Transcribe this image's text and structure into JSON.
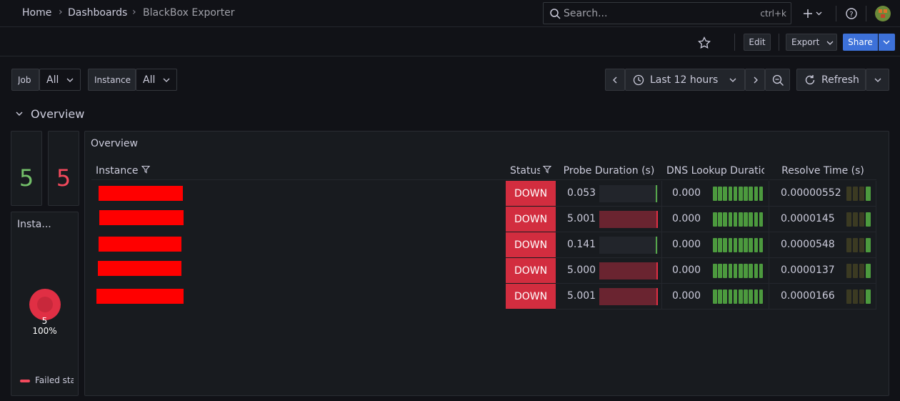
{
  "nav": {
    "breadcrumbs": [
      "Home",
      "Dashboards",
      "BlackBox Exporter"
    ],
    "search_placeholder": "Search...",
    "search_shortcut": "ctrl+k"
  },
  "toolbar": {
    "edit": "Edit",
    "export": "Export",
    "share": "Share"
  },
  "variables": [
    {
      "label": "Job",
      "value": "All"
    },
    {
      "label": "Instance",
      "value": "All"
    }
  ],
  "time_picker": {
    "range": "Last 12 hours",
    "refresh": "Refresh"
  },
  "row": {
    "title": "Overview"
  },
  "stats": [
    {
      "value": 5,
      "color": "#73bf69"
    },
    {
      "value": 5,
      "color": "#f2495c"
    }
  ],
  "pie_panel": {
    "title": "Insta...",
    "value": "5",
    "percent": "100%",
    "legend": "Failed sta"
  },
  "table_panel": {
    "title": "Overview",
    "columns": [
      "Instance",
      "Status",
      "Probe Duration (s)",
      "DNS Lookup Duratic",
      "Resolve Time (s)"
    ],
    "rows": [
      {
        "status": "DOWN",
        "probe": "0.053",
        "dns": "0.000",
        "resolve": "0.00000552"
      },
      {
        "status": "DOWN",
        "probe": "5.001",
        "dns": "0.000",
        "resolve": "0.0000145"
      },
      {
        "status": "DOWN",
        "probe": "0.141",
        "dns": "0.000",
        "resolve": "0.0000548"
      },
      {
        "status": "DOWN",
        "probe": "5.000",
        "dns": "0.000",
        "resolve": "0.0000137"
      },
      {
        "status": "DOWN",
        "probe": "5.001",
        "dns": "0.000",
        "resolve": "0.0000166"
      }
    ]
  }
}
